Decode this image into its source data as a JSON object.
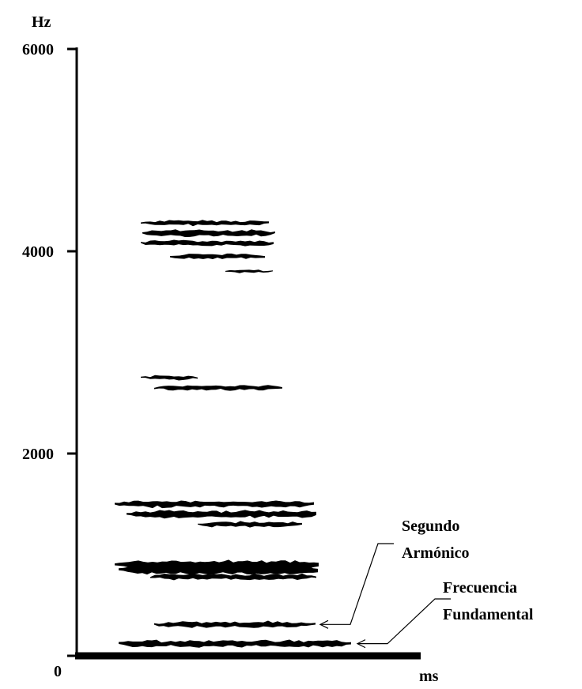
{
  "chart_data": {
    "type": "spectrogram",
    "y_label": "Hz",
    "x_label": "ms",
    "ylim": [
      0,
      6000
    ],
    "yticks": [
      0,
      2000,
      4000,
      6000
    ],
    "color": "#000000",
    "bands": [
      4280,
      4180,
      4080,
      3950,
      3800,
      2750,
      2650,
      1500,
      1400,
      1300,
      900,
      850,
      780,
      310,
      120
    ],
    "annotations": [
      {
        "lines": [
          "Segundo",
          "Armónico"
        ],
        "value": 310
      },
      {
        "lines": [
          "Frecuencia",
          "Fundamental"
        ],
        "value": 120
      }
    ]
  }
}
